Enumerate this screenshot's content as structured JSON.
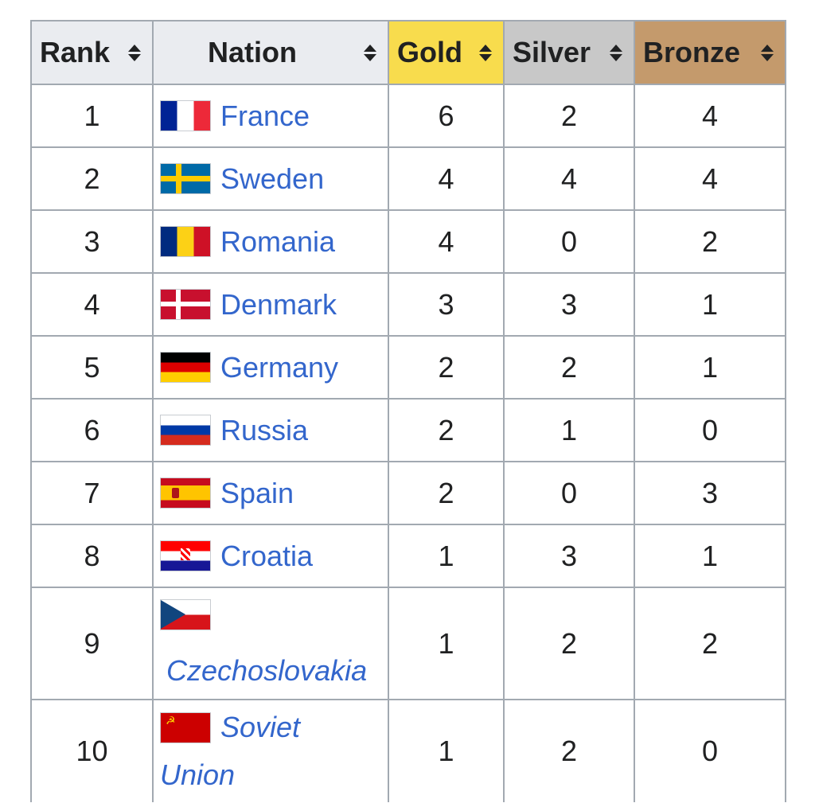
{
  "table": {
    "headers": {
      "rank": "Rank",
      "nation": "Nation",
      "gold": "Gold",
      "silver": "Silver",
      "bronze": "Bronze"
    },
    "header_colors": {
      "default": "#eaecf0",
      "gold": "#f8dc4d",
      "silver": "#c8c8c8",
      "bronze": "#c49a6c"
    },
    "link_color": "#3366cc",
    "rows": [
      {
        "rank": "1",
        "nation": "France",
        "flag": "france-flag-icon",
        "gold": "6",
        "silver": "2",
        "bronze": "4"
      },
      {
        "rank": "2",
        "nation": "Sweden",
        "flag": "sweden-flag-icon",
        "gold": "4",
        "silver": "4",
        "bronze": "4"
      },
      {
        "rank": "3",
        "nation": "Romania",
        "flag": "romania-flag-icon",
        "gold": "4",
        "silver": "0",
        "bronze": "2"
      },
      {
        "rank": "4",
        "nation": "Denmark",
        "flag": "denmark-flag-icon",
        "gold": "3",
        "silver": "3",
        "bronze": "1"
      },
      {
        "rank": "5",
        "nation": "Germany",
        "flag": "germany-flag-icon",
        "gold": "2",
        "silver": "2",
        "bronze": "1"
      },
      {
        "rank": "6",
        "nation": "Russia",
        "flag": "russia-flag-icon",
        "gold": "2",
        "silver": "1",
        "bronze": "0"
      },
      {
        "rank": "7",
        "nation": "Spain",
        "flag": "spain-flag-icon",
        "gold": "2",
        "silver": "0",
        "bronze": "3"
      },
      {
        "rank": "8",
        "nation": "Croatia",
        "flag": "croatia-flag-icon",
        "gold": "1",
        "silver": "3",
        "bronze": "1"
      },
      {
        "rank": "9",
        "nation": "Czechoslovakia",
        "flag": "czechoslovakia-flag-icon",
        "gold": "1",
        "silver": "2",
        "bronze": "2"
      },
      {
        "rank": "10",
        "nation_line1": "Soviet",
        "nation_line2": "Union",
        "flag": "soviet-union-flag-icon",
        "gold": "1",
        "silver": "2",
        "bronze": "0"
      }
    ]
  }
}
